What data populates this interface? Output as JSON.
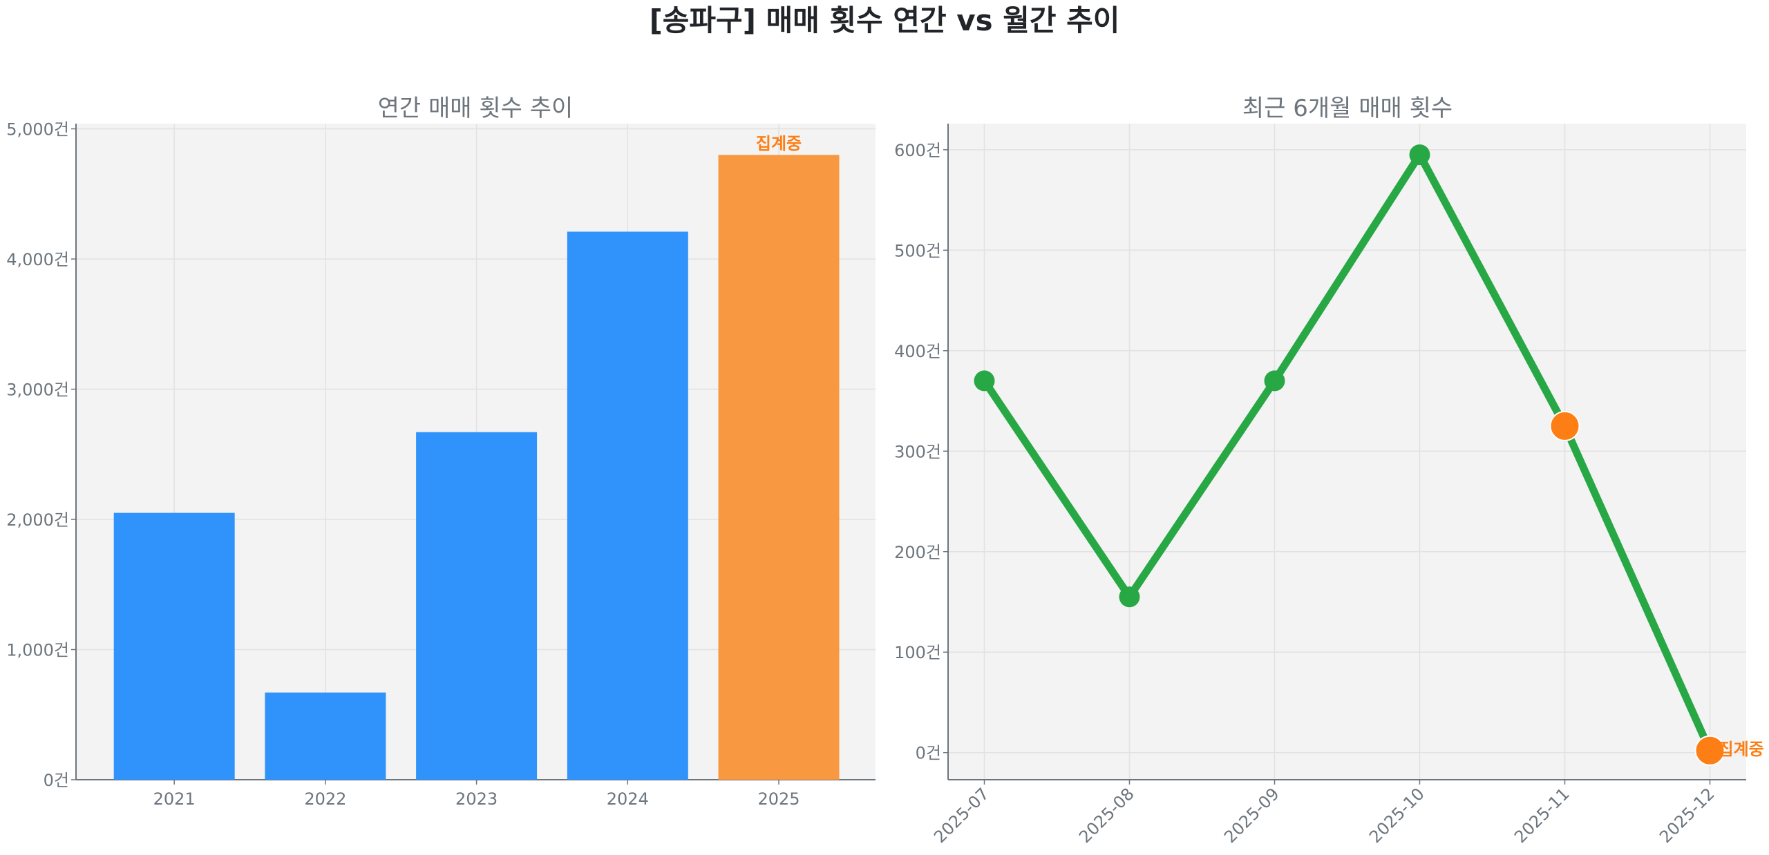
{
  "title": "[송파구] 매매 횟수 연간 vs 월간 추이",
  "chart_data": [
    {
      "type": "bar",
      "title": "연간 매매 횟수 추이",
      "categories": [
        "2021",
        "2022",
        "2023",
        "2024",
        "2025"
      ],
      "values": [
        2050,
        670,
        2670,
        4210,
        4800
      ],
      "bar_colors": [
        "#3093fb",
        "#3093fb",
        "#3093fb",
        "#3093fb",
        "#f89840"
      ],
      "ylim": [
        0,
        5040
      ],
      "yticks": [
        0,
        1000,
        2000,
        3000,
        4000,
        5000
      ],
      "ytick_labels": [
        "0건",
        "1,000건",
        "2,000건",
        "3,000건",
        "4,000건",
        "5,000건"
      ],
      "annotation": {
        "category": "2025",
        "text": "집계중",
        "color": "#fd7e14"
      },
      "grid": true,
      "background": "#f3f3f3"
    },
    {
      "type": "line",
      "title": "최근 6개월 매매 횟수",
      "categories": [
        "2025-07",
        "2025-08",
        "2025-09",
        "2025-10",
        "2025-11",
        "2025-12"
      ],
      "values": [
        370,
        155,
        370,
        595,
        325,
        2
      ],
      "line_color": "#28a745",
      "highlight_points": [
        "2025-11",
        "2025-12"
      ],
      "highlight_color": "#fd7e14",
      "ylim": [
        -27,
        626
      ],
      "yticks": [
        0,
        100,
        200,
        300,
        400,
        500,
        600
      ],
      "ytick_labels": [
        "0건",
        "100건",
        "200건",
        "300건",
        "400건",
        "500건",
        "600건"
      ],
      "annotation": {
        "category": "2025-12",
        "text": "집계중",
        "color": "#fd7e14"
      },
      "grid": true,
      "background": "#f3f3f3"
    }
  ]
}
